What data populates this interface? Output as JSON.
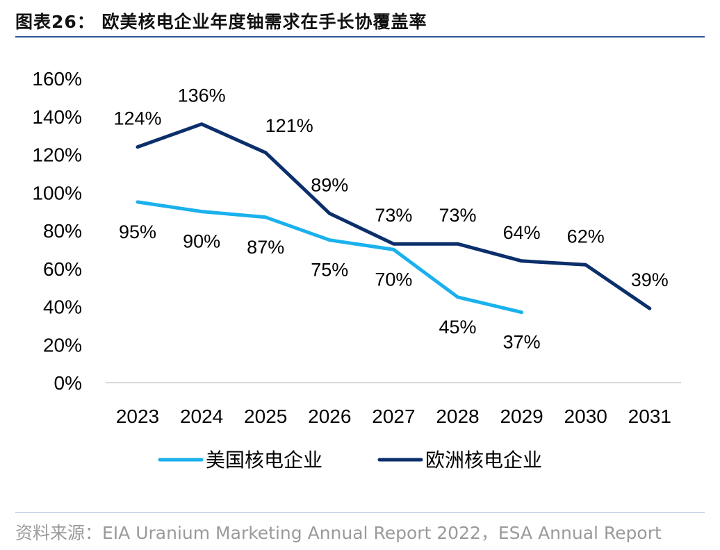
{
  "title": "图表26： 欧美核电企业年度铀需求在手长协覆盖率",
  "source": "资料来源：EIA Uranium Marketing Annual Report 2022，ESA Annual Report",
  "colors": {
    "us": "#1ab1ed",
    "eu": "#0b2f6b",
    "accent_rule": "#2f5597",
    "gridline": "#d9d9d9"
  },
  "chart_data": {
    "type": "line",
    "title": "欧美核电企业年度铀需求在手长协覆盖率",
    "categories": [
      "2023",
      "2024",
      "2025",
      "2026",
      "2027",
      "2028",
      "2029",
      "2030",
      "2031"
    ],
    "y_ticks": [
      "0%",
      "20%",
      "40%",
      "60%",
      "80%",
      "100%",
      "120%",
      "140%",
      "160%"
    ],
    "ylim": [
      0,
      160
    ],
    "grid": false,
    "legend_position": "bottom",
    "series": [
      {
        "name": "美国核电企业",
        "color": "#1ab1ed",
        "values": [
          95,
          90,
          87,
          75,
          70,
          45,
          37,
          null,
          null
        ],
        "labels": [
          "95%",
          "90%",
          "87%",
          "75%",
          "70%",
          "45%",
          "37%",
          "",
          ""
        ]
      },
      {
        "name": "欧洲核电企业",
        "color": "#0b2f6b",
        "values": [
          124,
          136,
          121,
          89,
          73,
          73,
          64,
          62,
          39
        ],
        "labels": [
          "124%",
          "136%",
          "121%",
          "89%",
          "73%",
          "73%",
          "64%",
          "62%",
          "39%"
        ]
      }
    ]
  }
}
